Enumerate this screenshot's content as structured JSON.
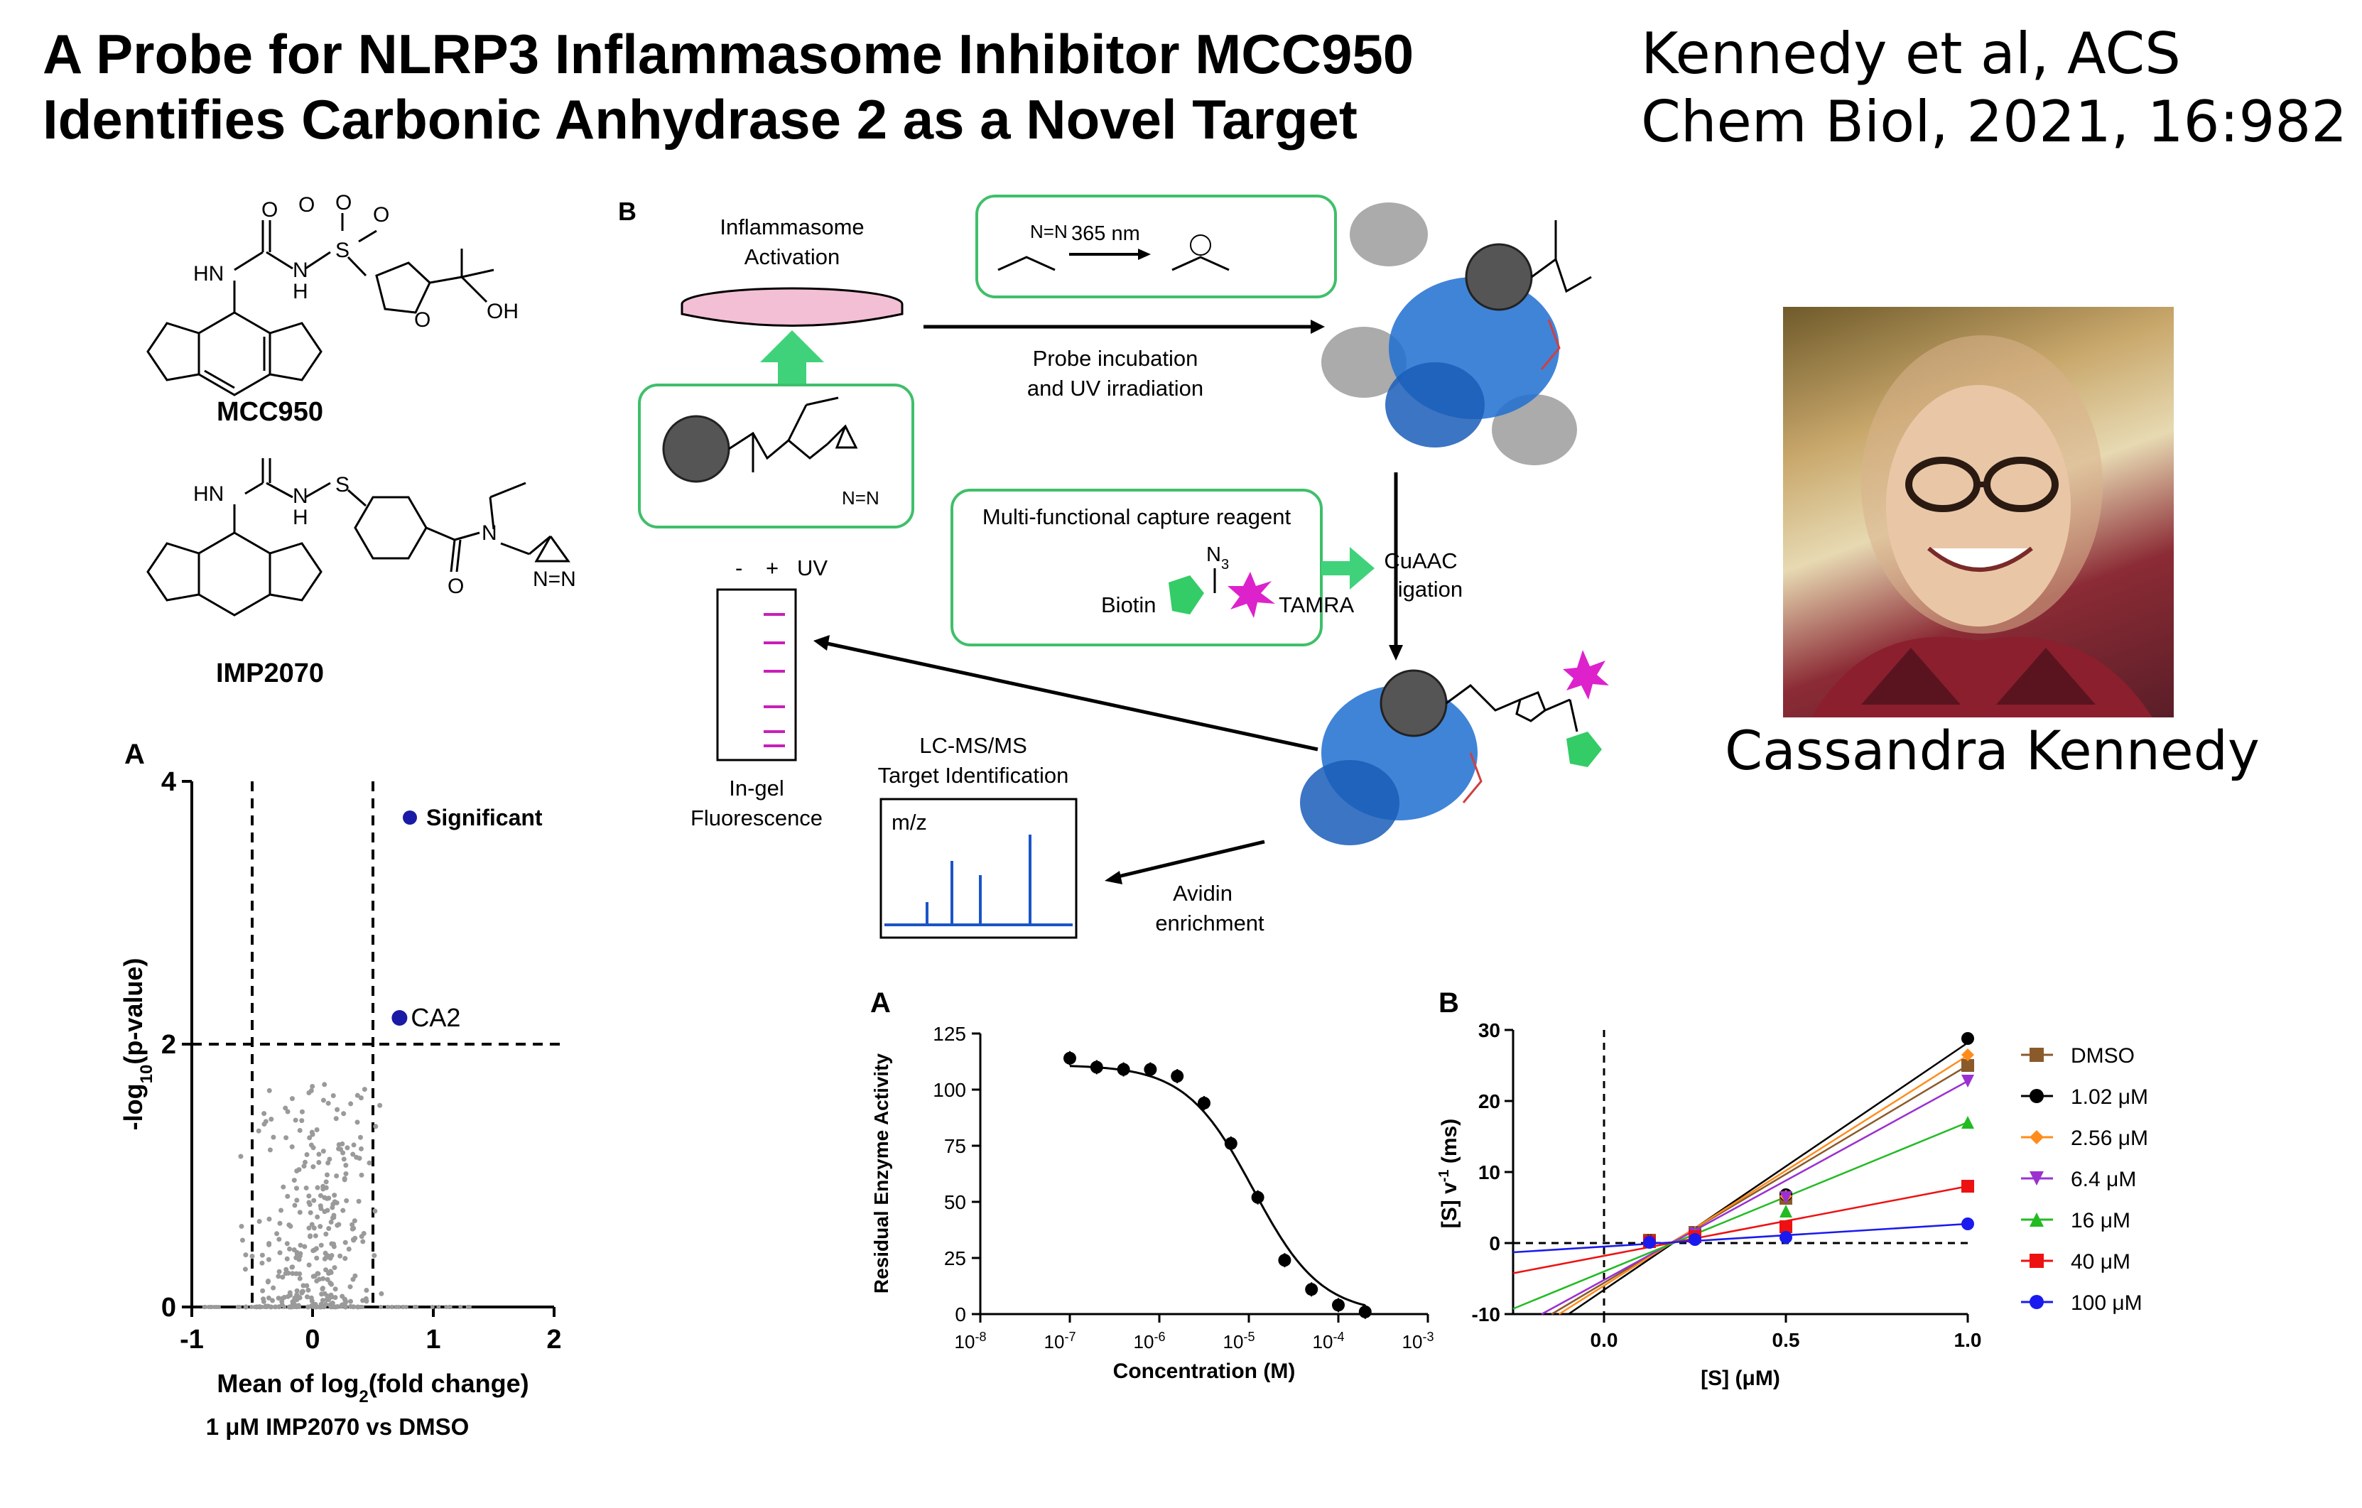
{
  "header": {
    "title_line1": "A Probe for NLRP3 Inflammasome Inhibitor MCC950",
    "title_line2": "Identifies Carbonic Anhydrase 2 as a Novel Target",
    "citation_line1": "Kennedy et al, ACS",
    "citation_line2": "Chem Biol, 2021, 16:982"
  },
  "person": {
    "name": "Cassandra Kennedy"
  },
  "structures": {
    "compound1": "MCC950",
    "compound2": "IMP2070",
    "atoms": {
      "O": "O",
      "HN": "HN",
      "H": "H",
      "N": "N",
      "S": "S",
      "OH": "OH",
      "NN": "N=N"
    }
  },
  "workflow": {
    "panel_letter": "B",
    "inflammasome_activation": [
      "Inflammasome",
      "Activation"
    ],
    "uv_label": "365 nm",
    "probe_incubation": [
      "Probe incubation",
      "and UV irradiation"
    ],
    "capture_reagent": "Multi-functional capture reagent",
    "n3": "N",
    "n3_sub": "3",
    "biotin": "Biotin",
    "tamra": "TAMRA",
    "cuaac": [
      "CuAAC",
      "ligation"
    ],
    "gel_minus": "-",
    "gel_plus": "+",
    "gel_uv": "UV",
    "in_gel": [
      "In-gel",
      "Fluorescence"
    ],
    "lcms": [
      "LC-MS/MS",
      "Target Identification"
    ],
    "mz": "m/z",
    "avidin": [
      "Avidin",
      "enrichment"
    ]
  },
  "chart_data": [
    {
      "type": "scatter",
      "panel_letter": "A",
      "xlabel_main": "Mean of log",
      "xlabel_sub": "2",
      "xlabel_end": "(fold change)",
      "xlabel_line2": "1 μM IMP2070 vs DMSO",
      "ylabel_main": "-log",
      "ylabel_sub": "10",
      "ylabel_end": "(p-value)",
      "xlim": [
        -1,
        2
      ],
      "ylim": [
        0,
        4
      ],
      "xticks": [
        "-1",
        "0",
        "1",
        "2"
      ],
      "yticks": [
        "0",
        "2",
        "4"
      ],
      "thresholds": {
        "x": [
          -0.5,
          0.5
        ],
        "y": 2
      },
      "legend": "Significant",
      "highlight": {
        "label": "CA2",
        "x": 0.72,
        "y": 2.2,
        "color": "#1a1aa6"
      },
      "background_points_color": "#9a9a9a"
    },
    {
      "type": "line",
      "panel_letter": "A",
      "xlabel": "Concentration (M)",
      "ylabel": "Residual Enzyme Activity",
      "xscale": "log",
      "xlim_exp": [
        -8,
        -3
      ],
      "ylim": [
        0,
        125
      ],
      "xtick_base": "10",
      "xtick_exps": [
        "-8",
        "-7",
        "-6",
        "-5",
        "-4",
        "-3"
      ],
      "yticks": [
        "0",
        "25",
        "50",
        "75",
        "100",
        "125"
      ],
      "points": [
        {
          "x": -7.0,
          "y": 114
        },
        {
          "x": -6.7,
          "y": 110
        },
        {
          "x": -6.4,
          "y": 109
        },
        {
          "x": -6.1,
          "y": 109
        },
        {
          "x": -5.8,
          "y": 106
        },
        {
          "x": -5.5,
          "y": 94
        },
        {
          "x": -5.2,
          "y": 76
        },
        {
          "x": -4.9,
          "y": 52
        },
        {
          "x": -4.6,
          "y": 24
        },
        {
          "x": -4.3,
          "y": 11
        },
        {
          "x": -4.0,
          "y": 4
        },
        {
          "x": -3.7,
          "y": 1
        }
      ],
      "fit": {
        "top": 111,
        "bottom": 0,
        "logIC50": -4.95,
        "hill": 1.15
      }
    },
    {
      "type": "line",
      "panel_letter": "B",
      "xlabel_main": "[S] (",
      "xlabel_unit": "μM",
      "xlabel_end": ")",
      "ylabel_main": "[S] v",
      "ylabel_sup": "-1",
      "ylabel_end": " (ms)",
      "xlim": [
        -0.25,
        1.0
      ],
      "ylim": [
        -10,
        30
      ],
      "xticks": [
        "0.0",
        "0.5",
        "1.0"
      ],
      "yticks": [
        "-10",
        "0",
        "10",
        "20",
        "30"
      ],
      "x": [
        0.125,
        0.25,
        0.5,
        1.0
      ],
      "series": [
        {
          "name": "DMSO",
          "color": "#8b5a2b",
          "marker": "square",
          "values": [
            0.4,
            1.5,
            6.3,
            25.0
          ],
          "fit": [
            -5.6,
            30.6
          ]
        },
        {
          "name": "1.02 μM",
          "color": "#000000",
          "marker": "circle",
          "values": [
            0.3,
            1.4,
            6.8,
            28.8
          ],
          "fit": [
            -6.6,
            34.8
          ]
        },
        {
          "name": "2.56 μM",
          "color": "#ff8c1a",
          "marker": "diamond",
          "values": [
            0.3,
            1.5,
            6.6,
            26.5
          ],
          "fit": [
            -6.0,
            32.4
          ]
        },
        {
          "name": "6.4 μM",
          "color": "#9b30d0",
          "marker": "triangle-down",
          "values": [
            0.2,
            1.3,
            6.4,
            22.8
          ],
          "fit": [
            -5.2,
            28.0
          ]
        },
        {
          "name": "16 μM",
          "color": "#22bb22",
          "marker": "triangle-up",
          "values": [
            0.3,
            1.2,
            4.5,
            17.0
          ],
          "fit": [
            -4.0,
            21.0
          ]
        },
        {
          "name": "40 μM",
          "color": "#ee1111",
          "marker": "square",
          "values": [
            0.2,
            0.9,
            2.3,
            8.0
          ],
          "fit": [
            -1.8,
            9.8
          ]
        },
        {
          "name": "100 μM",
          "color": "#1a1aee",
          "marker": "circle",
          "values": [
            0.1,
            0.5,
            0.8,
            2.7
          ],
          "fit": [
            -0.5,
            3.2
          ]
        }
      ]
    }
  ]
}
